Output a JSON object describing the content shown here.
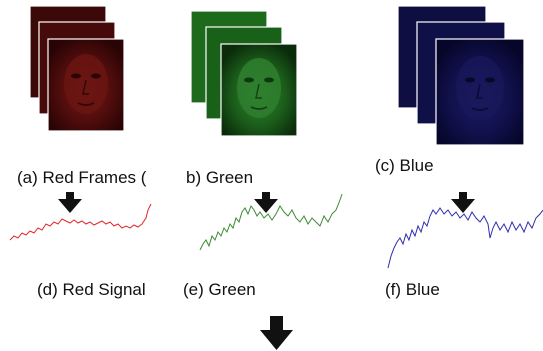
{
  "captions": {
    "a": "(a) Red Frames (",
    "b": "b) Green",
    "c": "(c) Blue",
    "d": "(d) Red Signal",
    "e": "(e) Green",
    "f": "(f) Blue"
  },
  "colors": {
    "red_frame": "#5a0d0d",
    "green_frame": "#1e6a1e",
    "blue_frame": "#12124a",
    "red_signal": "#e0262a",
    "green_signal": "#3c8a32",
    "blue_signal": "#2e2eaa",
    "arrow": "#111111"
  },
  "icons": {
    "frame_stack": "face-frame-stack-icon",
    "arrow": "down-arrow-icon"
  }
}
